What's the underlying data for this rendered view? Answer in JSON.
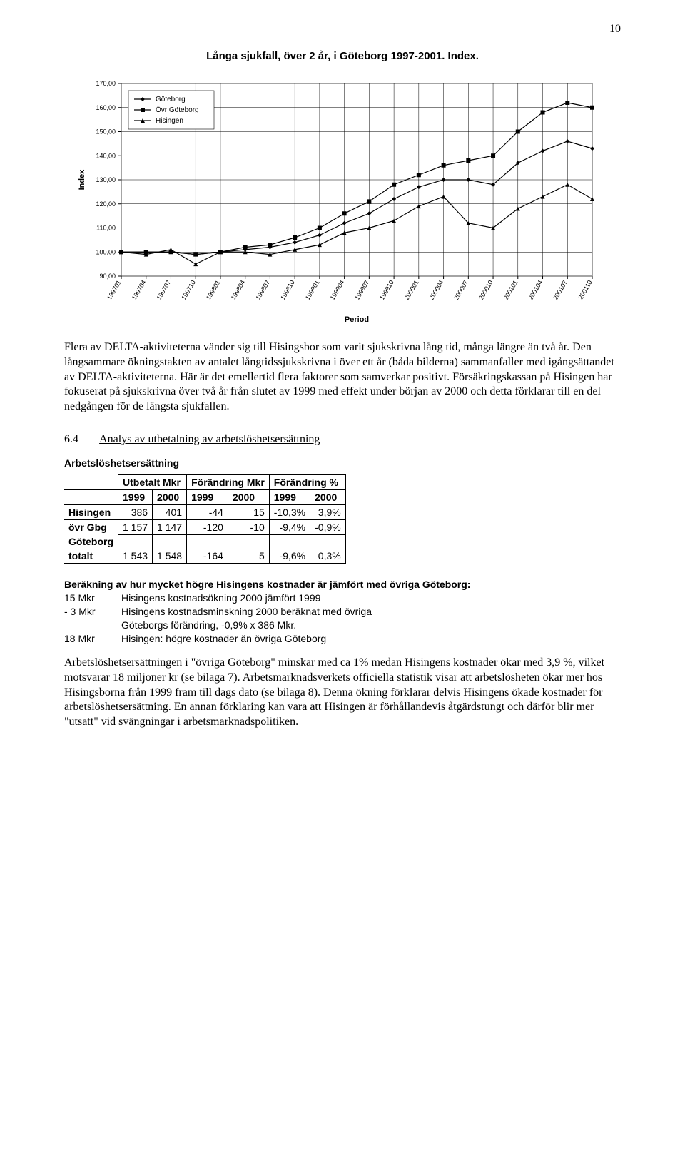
{
  "page_number": "10",
  "chart": {
    "title": "Långa sjukfall, över 2 år,  i Göteborg 1997-2001. Index.",
    "y_axis_label": "Index",
    "x_axis_label": "Period",
    "legend": [
      "Göteborg",
      "Övr Göteborg",
      "Hisingen"
    ],
    "y_min": 90,
    "y_max": 170,
    "y_step": 10,
    "categories": [
      "199701",
      "199704",
      "199707",
      "199710",
      "199801",
      "199804",
      "199807",
      "199810",
      "199901",
      "199904",
      "199907",
      "199910",
      "200001",
      "200004",
      "200007",
      "200010",
      "200101",
      "200104",
      "200107",
      "200110"
    ],
    "series": [
      {
        "name": "Göteborg",
        "color": "#000000",
        "marker": "diamond",
        "width": 1.2,
        "values": [
          100,
          100,
          100,
          99,
          100,
          101,
          102,
          104,
          107,
          112,
          116,
          122,
          127,
          130,
          130,
          128,
          137,
          142,
          146,
          143
        ]
      },
      {
        "name": "Övr Göteborg",
        "color": "#000000",
        "marker": "square",
        "width": 1.2,
        "values": [
          100,
          100,
          100,
          99,
          100,
          102,
          103,
          106,
          110,
          116,
          121,
          128,
          132,
          136,
          138,
          140,
          150,
          158,
          162,
          160
        ]
      },
      {
        "name": "Hisingen",
        "color": "#000000",
        "marker": "triangle",
        "width": 1.2,
        "values": [
          100,
          99,
          101,
          95,
          100,
          100,
          99,
          101,
          103,
          108,
          110,
          113,
          119,
          123,
          112,
          110,
          118,
          123,
          128,
          122
        ]
      }
    ],
    "bg_color": "#ffffff",
    "grid_color": "#000000",
    "tick_fontsize": 9,
    "title_fontsize": 15
  },
  "para1": "Flera av DELTA-aktiviteterna vänder sig till Hisingsbor som varit sjukskrivna lång tid, många längre än två år. Den långsammare ökningstakten av antalet långtidssjukskrivna i över ett år (båda bilderna) sammanfaller med igångsättandet av DELTA-aktiviteterna. Här är det emellertid flera faktorer som samverkar positivt. Försäkringskassan på Hisingen har fokuserat på sjukskrivna över två år från slutet av 1999 med effekt under början av 2000 och detta förklarar till en del nedgången för de längsta sjukfallen.",
  "section": {
    "num": "6.4",
    "title": "Analys av utbetalning av arbetslöshetsersättning"
  },
  "table": {
    "title": "Arbetslöshetsersättning",
    "group_headers": [
      "Utbetalt Mkr",
      "Förändring Mkr",
      "Förändring %"
    ],
    "year_headers": [
      "1999",
      "2000",
      "1999",
      "2000",
      "1999",
      "2000"
    ],
    "rows": [
      {
        "label": "Hisingen",
        "cells": [
          "386",
          "401",
          "-44",
          "15",
          "-10,3%",
          "3,9%"
        ]
      },
      {
        "label": "övr Gbg",
        "cells": [
          "1 157",
          "1 147",
          "-120",
          "-10",
          "-9,4%",
          "-0,9%"
        ]
      },
      {
        "label": "Göteborg totalt",
        "label1": "Göteborg",
        "label2": "totalt",
        "cells": [
          "1 543",
          "1 548",
          "-164",
          "5",
          "-9,6%",
          "0,3%"
        ]
      }
    ]
  },
  "calc": {
    "title": "Beräkning av hur mycket högre Hisingens kostnader är jämfört med övriga Göteborg:",
    "lines": [
      {
        "amt": "15 Mkr",
        "text": "Hisingens kostnadsökning 2000 jämfört 1999",
        "under": false
      },
      {
        "amt": "- 3 Mkr",
        "text": "Hisingens kostnadsminskning 2000 beräknat med övriga",
        "under": true
      },
      {
        "amt": "",
        "text": "Göteborgs förändring, -0,9% x 386 Mkr.",
        "under": false
      },
      {
        "amt": "18 Mkr",
        "text": "Hisingen: högre kostnader än övriga Göteborg",
        "under": false
      }
    ]
  },
  "para2": "Arbetslöshetsersättningen i \"övriga Göteborg\" minskar med ca 1% medan Hisingens kostnader ökar med 3,9 %, vilket motsvarar 18 miljoner kr (se bilaga 7). Arbetsmarknadsverkets officiella statistik visar att arbetslösheten ökar mer hos Hisingsborna från 1999 fram till dags dato (se bilaga 8). Denna ökning förklarar delvis Hisingens ökade kostnader för arbetslöshetsersättning. En annan förklaring kan vara att Hisingen är förhållandevis åtgärdstungt och därför blir mer \"utsatt\" vid svängningar i arbetsmarknadspolitiken."
}
